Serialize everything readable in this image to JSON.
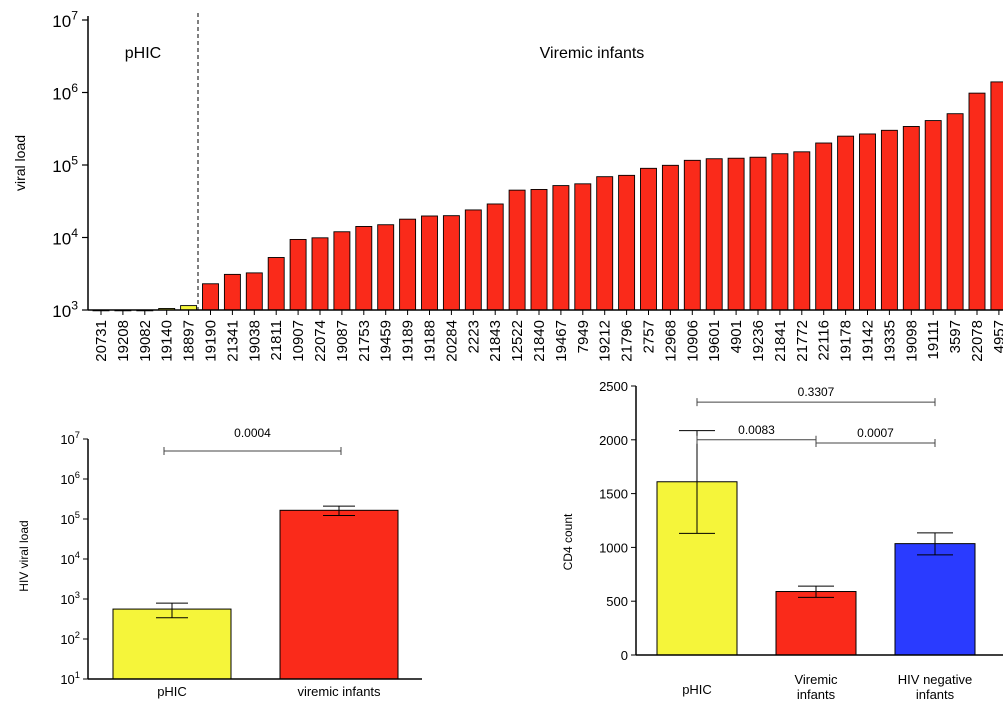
{
  "chart_data": [
    {
      "type": "bar",
      "ylabel": "viral load",
      "yscale": "log",
      "ylim": [
        1000,
        10000000
      ],
      "yticks": [
        {
          "base": "10",
          "exp": "3"
        },
        {
          "base": "10",
          "exp": "4"
        },
        {
          "base": "10",
          "exp": "5"
        },
        {
          "base": "10",
          "exp": "6"
        },
        {
          "base": "10",
          "exp": "7"
        }
      ],
      "groups": [
        {
          "label": "pHIC",
          "color": "#f5f53a"
        },
        {
          "label": "Viremic infants",
          "color": "#fa2a1a"
        }
      ],
      "categories": [
        "20731",
        "19208",
        "19082",
        "19140",
        "18897",
        "19190",
        "21341",
        "19038",
        "21811",
        "10907",
        "22074",
        "19087",
        "21753",
        "19459",
        "19189",
        "19188",
        "20284",
        "2223",
        "21843",
        "12522",
        "21840",
        "19467",
        "7949",
        "19212",
        "21796",
        "2757",
        "12968",
        "10906",
        "19601",
        "4901",
        "19236",
        "21841",
        "21772",
        "22116",
        "19178",
        "19142",
        "19335",
        "19098",
        "19111",
        "3597",
        "22078",
        "4957"
      ],
      "values": [
        1000,
        1000,
        1000,
        1050,
        1150,
        2300,
        3100,
        3250,
        5300,
        9400,
        9900,
        12000,
        14200,
        15000,
        17900,
        19800,
        20000,
        24000,
        29000,
        45000,
        46000,
        52000,
        55000,
        69000,
        72000,
        90000,
        99000,
        116000,
        122000,
        124000,
        128000,
        143000,
        152000,
        201000,
        250000,
        268000,
        301000,
        340000,
        410000,
        510000,
        980000,
        1400000
      ],
      "group_index": [
        0,
        0,
        0,
        0,
        0,
        1,
        1,
        1,
        1,
        1,
        1,
        1,
        1,
        1,
        1,
        1,
        1,
        1,
        1,
        1,
        1,
        1,
        1,
        1,
        1,
        1,
        1,
        1,
        1,
        1,
        1,
        1,
        1,
        1,
        1,
        1,
        1,
        1,
        1,
        1,
        1,
        1
      ]
    },
    {
      "type": "bar",
      "ylabel": "HIV viral load",
      "yscale": "log",
      "ylim": [
        10,
        10000000
      ],
      "yticks": [
        {
          "base": "10",
          "exp": "1"
        },
        {
          "base": "10",
          "exp": "2"
        },
        {
          "base": "10",
          "exp": "3"
        },
        {
          "base": "10",
          "exp": "4"
        },
        {
          "base": "10",
          "exp": "5"
        },
        {
          "base": "10",
          "exp": "6"
        },
        {
          "base": "10",
          "exp": "7"
        }
      ],
      "categories": [
        "pHIC",
        "viremic infants"
      ],
      "values": [
        560,
        165000
      ],
      "error_low": [
        340,
        122000
      ],
      "error_high": [
        790,
        210000
      ],
      "colors": [
        "#f5f53a",
        "#fa2a1a"
      ],
      "comparisons": [
        {
          "from": 0,
          "to": 1,
          "label": "0.0004",
          "y": 5000000
        }
      ]
    },
    {
      "type": "bar",
      "ylabel": "CD4 count",
      "ylim": [
        0,
        2500
      ],
      "yticks": [
        "0",
        "500",
        "1000",
        "1500",
        "2000",
        "2500"
      ],
      "categories": [
        [
          "pHIC"
        ],
        [
          "Viremic",
          "infants"
        ],
        [
          "HIV negative",
          "infants"
        ]
      ],
      "values": [
        1610,
        590,
        1035
      ],
      "error_low": [
        1130,
        535,
        930
      ],
      "error_high": [
        2085,
        640,
        1135
      ],
      "colors": [
        "#f5f53a",
        "#fa2a1a",
        "#2a3bff"
      ],
      "comparisons": [
        {
          "from": 0,
          "to": 2,
          "label": "0.3307",
          "y": 2350
        },
        {
          "from": 0,
          "to": 1,
          "label": "0.0083",
          "y": 2000
        },
        {
          "from": 1,
          "to": 2,
          "label": "0.0007",
          "y": 1970
        }
      ]
    }
  ]
}
